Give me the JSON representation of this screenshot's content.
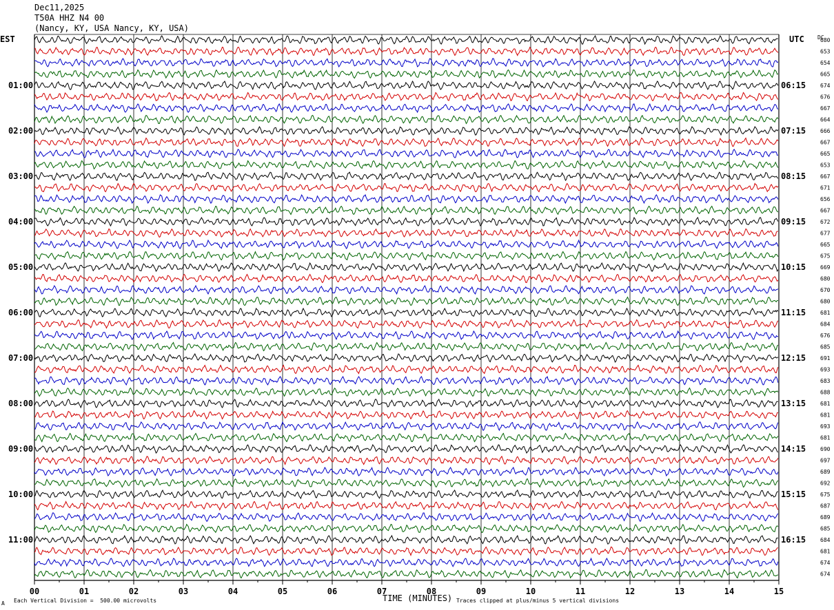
{
  "header": {
    "date": "Dec11,2025",
    "station": "T50A HHZ N4 00",
    "location": "(Nancy, KY, USA Nancy, KY, USA)"
  },
  "left_label": "EST",
  "right_label": "UTC",
  "dc_label": "DC",
  "footer": {
    "corner_mark": "A",
    "scale_note": "Each Vertical Division =  500.00 microvolts",
    "clip_note": "Traces clipped at plus/minus 5 vertical divisions"
  },
  "colors": {
    "trace_cycle": [
      "#000000",
      "#d40000",
      "#0000c8",
      "#006400"
    ],
    "grid": "#000000"
  },
  "chart_data": {
    "type": "line",
    "title": "T50A HHZ N4 00",
    "xlabel": "TIME (MINUTES)",
    "xlim": [
      0,
      15
    ],
    "x_ticks": [
      "00",
      "01",
      "02",
      "03",
      "04",
      "05",
      "06",
      "07",
      "08",
      "09",
      "10",
      "11",
      "12",
      "13",
      "14",
      "15"
    ],
    "row_count": 48,
    "rows_per_hour": 4,
    "est_hour_labels": [
      "01:00",
      "02:00",
      "03:00",
      "04:00",
      "05:00",
      "06:00",
      "07:00",
      "08:00",
      "09:00",
      "10:00",
      "11:00"
    ],
    "utc_hour_labels": [
      "06:15",
      "07:15",
      "08:15",
      "09:15",
      "10:15",
      "11:15",
      "12:15",
      "13:15",
      "14:15",
      "15:15",
      "16:15"
    ],
    "dc_offsets": [
      680,
      653,
      654,
      665,
      674,
      676,
      667,
      664,
      666,
      667,
      665,
      653,
      667,
      671,
      656,
      667,
      672,
      677,
      665,
      675,
      669,
      680,
      670,
      680,
      681,
      684,
      676,
      685,
      691,
      693,
      683,
      688,
      681,
      681,
      693,
      681,
      690,
      697,
      689,
      692,
      675,
      687,
      689,
      685,
      684,
      681,
      674,
      674
    ],
    "clip_divisions": 5
  }
}
